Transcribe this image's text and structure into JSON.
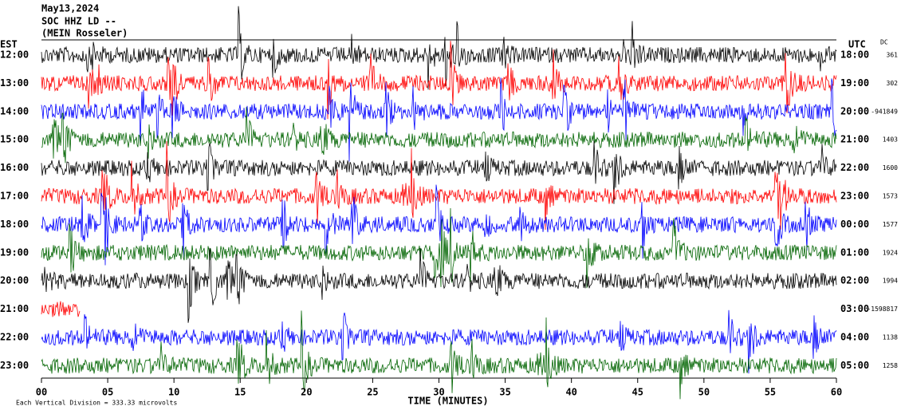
{
  "chart_data": {
    "type": "helicorder",
    "title": "May13,2024",
    "subtitle": "SOC HHZ LD --",
    "note": "(MEIN Rosseler)",
    "left_header": "EST",
    "right_header": "UTC",
    "dc_header": "DC",
    "xlabel": "TIME (MINUTES)",
    "footer": "Each Vertical Division = 333.33 microvolts",
    "xlim": [
      0,
      60
    ],
    "xticks": [
      {
        "value": 0,
        "label": "00"
      },
      {
        "value": 5,
        "label": "05"
      },
      10,
      15,
      20,
      25,
      30,
      35,
      40,
      45,
      50,
      55,
      60
    ],
    "rows": [
      {
        "left": "12:00",
        "right": "18:00",
        "dc": "361",
        "color": "#000000"
      },
      {
        "left": "13:00",
        "right": "19:00",
        "dc": "302",
        "color": "#ff0000"
      },
      {
        "left": "14:00",
        "right": "20:00",
        "dc": "-941849",
        "color": "#0000ff"
      },
      {
        "left": "15:00",
        "right": "21:00",
        "dc": "1403",
        "color": "#006400"
      },
      {
        "left": "16:00",
        "right": "22:00",
        "dc": "1600",
        "color": "#000000"
      },
      {
        "left": "17:00",
        "right": "23:00",
        "dc": "1573",
        "color": "#ff0000"
      },
      {
        "left": "18:00",
        "right": "00:00",
        "dc": "1577",
        "color": "#0000ff"
      },
      {
        "left": "19:00",
        "right": "01:00",
        "dc": "1924",
        "color": "#006400"
      },
      {
        "left": "20:00",
        "right": "02:00",
        "dc": "1994",
        "color": "#000000"
      },
      {
        "left": "21:00",
        "right": "03:00",
        "dc": "-1598817",
        "color": "#ff0000"
      },
      {
        "left": "22:00",
        "right": "04:00",
        "dc": "1138",
        "color": "#0000ff"
      },
      {
        "left": "23:00",
        "right": "05:00",
        "dc": "1258",
        "color": "#006400"
      }
    ]
  }
}
